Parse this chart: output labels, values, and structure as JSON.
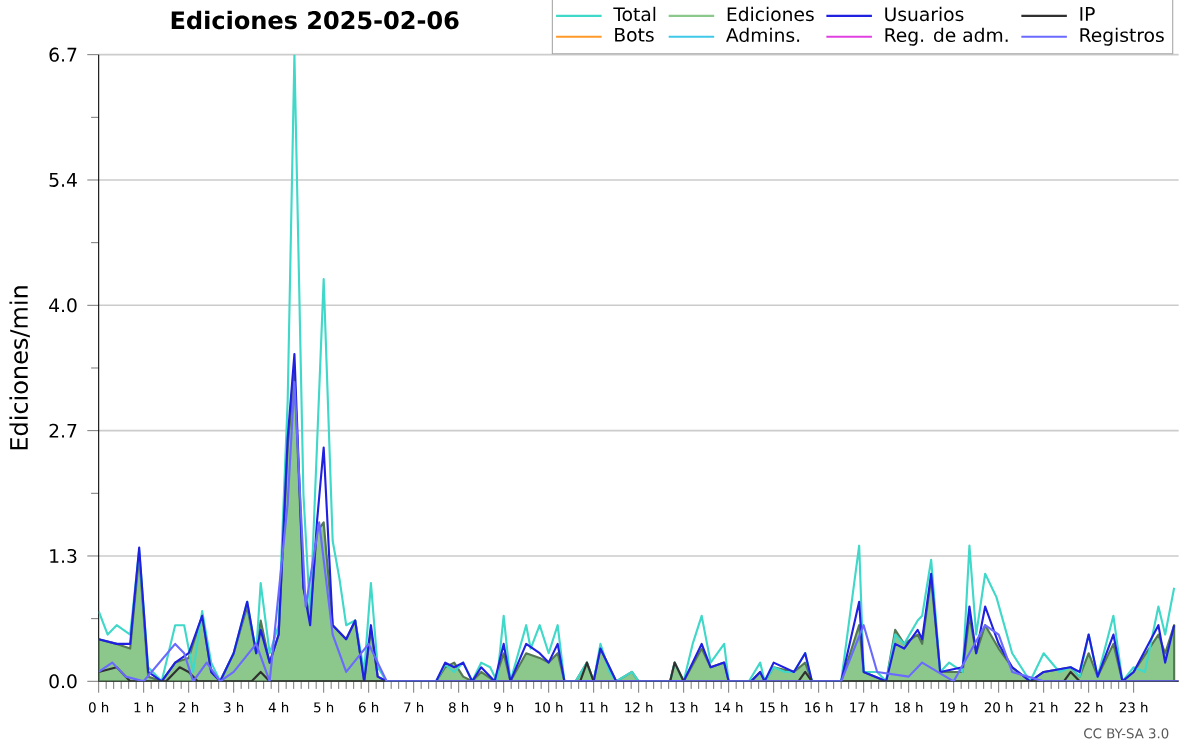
{
  "chart_data": {
    "type": "line",
    "title": "Ediciones  2025-02-06",
    "ylabel": "Ediciones/min",
    "xlim": [
      0,
      24
    ],
    "ylim": [
      0,
      6.7
    ],
    "xticks": [
      {
        "value": 0,
        "label": "0 h"
      },
      {
        "value": 1,
        "label": "1 h"
      },
      {
        "value": 2,
        "label": "2 h"
      },
      {
        "value": 3,
        "label": "3 h"
      },
      {
        "value": 4,
        "label": "4 h"
      },
      {
        "value": 5,
        "label": "5 h"
      },
      {
        "value": 6,
        "label": "6 h"
      },
      {
        "value": 7,
        "label": "7 h"
      },
      {
        "value": 8,
        "label": "8 h"
      },
      {
        "value": 9,
        "label": "9 h"
      },
      {
        "value": 10,
        "label": "10 h"
      },
      {
        "value": 11,
        "label": "11 h"
      },
      {
        "value": 12,
        "label": "12 h"
      },
      {
        "value": 13,
        "label": "13 h"
      },
      {
        "value": 14,
        "label": "14 h"
      },
      {
        "value": 15,
        "label": "15 h"
      },
      {
        "value": 16,
        "label": "16 h"
      },
      {
        "value": 17,
        "label": "17 h"
      },
      {
        "value": 18,
        "label": "18 h"
      },
      {
        "value": 19,
        "label": "19 h"
      },
      {
        "value": 20,
        "label": "20 h"
      },
      {
        "value": 21,
        "label": "21 h"
      },
      {
        "value": 22,
        "label": "22 h"
      },
      {
        "value": 23,
        "label": "23 h"
      }
    ],
    "yticks": [
      {
        "value": 0,
        "label": "0.0"
      },
      {
        "value": 1.34,
        "label": "1.3"
      },
      {
        "value": 2.68,
        "label": "2.7"
      },
      {
        "value": 4.02,
        "label": "4.0"
      },
      {
        "value": 5.36,
        "label": "5.4"
      },
      {
        "value": 6.7,
        "label": "6.7"
      }
    ],
    "grid": "y",
    "legend": "top right",
    "line_style": "solid",
    "marker": "none",
    "annotations": [
      "CC BY-SA 3.0"
    ],
    "series": [
      {
        "name": "Total",
        "color": "#40d8c8",
        "x": [
          0,
          0.2,
          0.4,
          0.7,
          0.9,
          1.1,
          1.4,
          1.7,
          1.9,
          2.1,
          2.3,
          2.5,
          2.7,
          3.0,
          3.3,
          3.5,
          3.6,
          3.8,
          4.0,
          4.2,
          4.35,
          4.55,
          4.7,
          4.85,
          5.0,
          5.2,
          5.35,
          5.5,
          5.7,
          5.9,
          6.05,
          6.2,
          6.4,
          7.5,
          7.7,
          7.9,
          8.1,
          8.3,
          8.5,
          8.7,
          8.85,
          9.0,
          9.15,
          9.5,
          9.6,
          9.8,
          10.0,
          10.2,
          10.35,
          10.6,
          10.85,
          11.0,
          11.15,
          11.35,
          11.5,
          11.85,
          12.0,
          12.7,
          12.8,
          13.0,
          13.2,
          13.4,
          13.6,
          13.9,
          14.0,
          14.45,
          14.7,
          14.8,
          15.0,
          15.25,
          15.45,
          15.7,
          15.85,
          16.5,
          16.9,
          17.0,
          17.3,
          17.5,
          17.7,
          17.9,
          18.2,
          18.3,
          18.5,
          18.7,
          18.9,
          19.2,
          19.35,
          19.5,
          19.7,
          19.95,
          20.3,
          20.5,
          20.7,
          21.0,
          21.35,
          21.6,
          21.8,
          22.0,
          22.2,
          22.55,
          22.75,
          23.0,
          23.25,
          23.55,
          23.7,
          23.9
        ],
        "values": [
          0.75,
          0.5,
          0.6,
          0.5,
          1.4,
          0.15,
          0,
          0.6,
          0.6,
          0.1,
          0.75,
          0.2,
          0,
          0.3,
          0.85,
          0.3,
          1.05,
          0.3,
          0.6,
          3.0,
          6.7,
          2.0,
          0.7,
          2.5,
          4.3,
          1.5,
          1.1,
          0.6,
          0.65,
          0.1,
          1.05,
          0.15,
          0,
          0,
          0.18,
          0.1,
          0.2,
          0,
          0.2,
          0.15,
          0,
          0.7,
          0,
          0.6,
          0.35,
          0.6,
          0.3,
          0.6,
          0,
          0,
          0.2,
          0,
          0.4,
          0.1,
          0,
          0.1,
          0,
          0,
          0.2,
          0,
          0.4,
          0.7,
          0.2,
          0.4,
          0,
          0,
          0.2,
          0,
          0.15,
          0.1,
          0.1,
          0.3,
          0,
          0,
          1.45,
          0.1,
          0.1,
          0,
          0.5,
          0.4,
          0.65,
          0.7,
          1.3,
          0.1,
          0.2,
          0.1,
          1.45,
          0.5,
          1.15,
          0.9,
          0.3,
          0.15,
          0,
          0.3,
          0.1,
          0.15,
          0.05,
          0.5,
          0.05,
          0.7,
          0,
          0.15,
          0.1,
          0.8,
          0.5,
          1.0
        ]
      },
      {
        "name": "Ediciones",
        "type": "area",
        "color": "#8cc88c",
        "x": [
          0,
          0.4,
          0.7,
          0.9,
          1.1,
          1.4,
          1.7,
          2.0,
          2.3,
          2.5,
          2.7,
          3.0,
          3.3,
          3.5,
          3.6,
          3.8,
          4.0,
          4.2,
          4.35,
          4.55,
          4.7,
          4.85,
          5.0,
          5.2,
          5.5,
          5.7,
          5.9,
          6.05,
          6.2,
          6.4,
          7.5,
          7.7,
          7.9,
          8.1,
          8.3,
          8.5,
          8.8,
          9.0,
          9.15,
          9.5,
          9.8,
          10.0,
          10.2,
          10.35,
          10.6,
          10.85,
          11.0,
          11.15,
          11.5,
          11.85,
          12.0,
          12.7,
          12.8,
          13.0,
          13.4,
          13.6,
          13.9,
          14.0,
          14.5,
          14.7,
          14.8,
          15.0,
          15.45,
          15.7,
          15.85,
          16.5,
          16.9,
          17.0,
          17.5,
          17.7,
          17.9,
          18.2,
          18.3,
          18.5,
          18.7,
          19.2,
          19.35,
          19.5,
          19.7,
          20.0,
          20.3,
          20.7,
          21.0,
          21.6,
          21.8,
          22.0,
          22.2,
          22.55,
          22.75,
          23.0,
          23.55,
          23.7,
          23.9
        ],
        "values": [
          0.45,
          0.4,
          0.35,
          1.35,
          0.05,
          0,
          0.2,
          0.25,
          0.7,
          0.1,
          0,
          0.3,
          0.8,
          0.3,
          0.65,
          0.2,
          0.5,
          2.5,
          3.3,
          1.0,
          0.7,
          1.6,
          1.7,
          0.6,
          0.45,
          0.65,
          0,
          0.55,
          0.05,
          0,
          0,
          0.15,
          0.2,
          0.05,
          0,
          0.1,
          0,
          0.3,
          0,
          0.3,
          0.25,
          0.2,
          0.3,
          0,
          0,
          0.2,
          0,
          0.35,
          0,
          0.1,
          0,
          0,
          0.2,
          0,
          0.35,
          0.15,
          0.2,
          0,
          0,
          0.1,
          0,
          0.15,
          0.1,
          0.2,
          0,
          0,
          0.6,
          0.1,
          0,
          0.55,
          0.4,
          0.5,
          0.4,
          1.1,
          0.1,
          0.1,
          0.7,
          0.3,
          0.6,
          0.35,
          0.15,
          0,
          0.1,
          0.15,
          0.05,
          0.3,
          0.05,
          0.4,
          0,
          0.1,
          0.5,
          0.3,
          0.6
        ]
      },
      {
        "name": "Usuarios",
        "color": "#2020e0",
        "x": [
          0,
          0.4,
          0.7,
          0.9,
          1.1,
          1.4,
          1.7,
          2.0,
          2.3,
          2.5,
          2.7,
          3.0,
          3.3,
          3.5,
          3.6,
          3.8,
          4.0,
          4.2,
          4.35,
          4.55,
          4.7,
          4.85,
          5.0,
          5.2,
          5.5,
          5.7,
          5.9,
          6.05,
          6.2,
          6.4,
          7.5,
          7.7,
          7.9,
          8.1,
          8.3,
          8.5,
          8.8,
          9.0,
          9.15,
          9.5,
          9.8,
          10.0,
          10.2,
          10.35,
          10.6,
          10.85,
          11.0,
          11.15,
          11.5,
          11.85,
          12.0,
          12.7,
          12.8,
          13.0,
          13.4,
          13.6,
          13.9,
          14.0,
          14.5,
          14.7,
          14.8,
          15.0,
          15.45,
          15.7,
          15.85,
          16.5,
          16.9,
          17.0,
          17.5,
          17.7,
          17.9,
          18.2,
          18.3,
          18.5,
          18.7,
          19.2,
          19.35,
          19.5,
          19.7,
          20.0,
          20.3,
          20.7,
          21.0,
          21.6,
          21.8,
          22.0,
          22.2,
          22.55,
          22.75,
          23.0,
          23.55,
          23.7,
          23.9
        ],
        "values": [
          0.45,
          0.4,
          0.4,
          1.43,
          0.1,
          0,
          0.2,
          0.3,
          0.7,
          0.1,
          0,
          0.3,
          0.85,
          0.3,
          0.55,
          0.2,
          0.5,
          2.6,
          3.5,
          1.0,
          0.6,
          1.7,
          2.5,
          0.6,
          0.45,
          0.65,
          0,
          0.6,
          0.05,
          0,
          0,
          0.2,
          0.15,
          0.2,
          0,
          0.15,
          0,
          0.4,
          0,
          0.4,
          0.3,
          0.2,
          0.4,
          0,
          0,
          0,
          0,
          0.35,
          0,
          0,
          0,
          0,
          0,
          0,
          0.4,
          0.15,
          0.2,
          0,
          0,
          0.1,
          0,
          0.2,
          0.1,
          0.3,
          0,
          0,
          0.85,
          0.1,
          0,
          0.4,
          0.35,
          0.55,
          0.45,
          1.15,
          0.1,
          0.15,
          0.8,
          0.3,
          0.8,
          0.4,
          0.15,
          0,
          0.1,
          0.15,
          0.1,
          0.5,
          0.05,
          0.5,
          0,
          0.1,
          0.6,
          0.2,
          0.6
        ]
      },
      {
        "name": "IP",
        "color": "#303030",
        "x": [
          0,
          0.4,
          0.7,
          1.5,
          1.8,
          2.0,
          2.2,
          3.4,
          3.6,
          3.8,
          10.7,
          10.85,
          11.0,
          12.7,
          12.8,
          13.0,
          15.55,
          15.7,
          15.85,
          21.45,
          21.6,
          21.8,
          24
        ],
        "values": [
          0.1,
          0.15,
          0,
          0,
          0.15,
          0.1,
          0,
          0,
          0.1,
          0,
          0,
          0.2,
          0,
          0,
          0.2,
          0,
          0,
          0.1,
          0,
          0,
          0.1,
          0,
          0
        ]
      },
      {
        "name": "Bots",
        "color": "#ff9a2a"
      },
      {
        "name": "Admins.",
        "color": "#40c8e8"
      },
      {
        "name": "Reg. de adm.",
        "color": "#e040e0"
      },
      {
        "name": "Registros",
        "color": "#6a6aff",
        "x": [
          0,
          0.3,
          0.6,
          1.0,
          1.7,
          1.9,
          2.1,
          2.4,
          2.7,
          3.0,
          3.5,
          3.8,
          4.2,
          4.35,
          4.6,
          4.9,
          5.2,
          5.5,
          6.0,
          6.4,
          16.5,
          17.0,
          17.3,
          18.0,
          18.3,
          19.0,
          19.35,
          19.7,
          20.0,
          20.3,
          21.0,
          24
        ],
        "values": [
          0.1,
          0.2,
          0.05,
          0,
          0.4,
          0.3,
          0,
          0.2,
          0,
          0.1,
          0.4,
          0,
          1.9,
          3.2,
          0.8,
          1.7,
          0.5,
          0.1,
          0.4,
          0,
          0,
          0.6,
          0.1,
          0.05,
          0.2,
          0,
          0.3,
          0.6,
          0.5,
          0.1,
          0,
          0
        ]
      }
    ]
  }
}
